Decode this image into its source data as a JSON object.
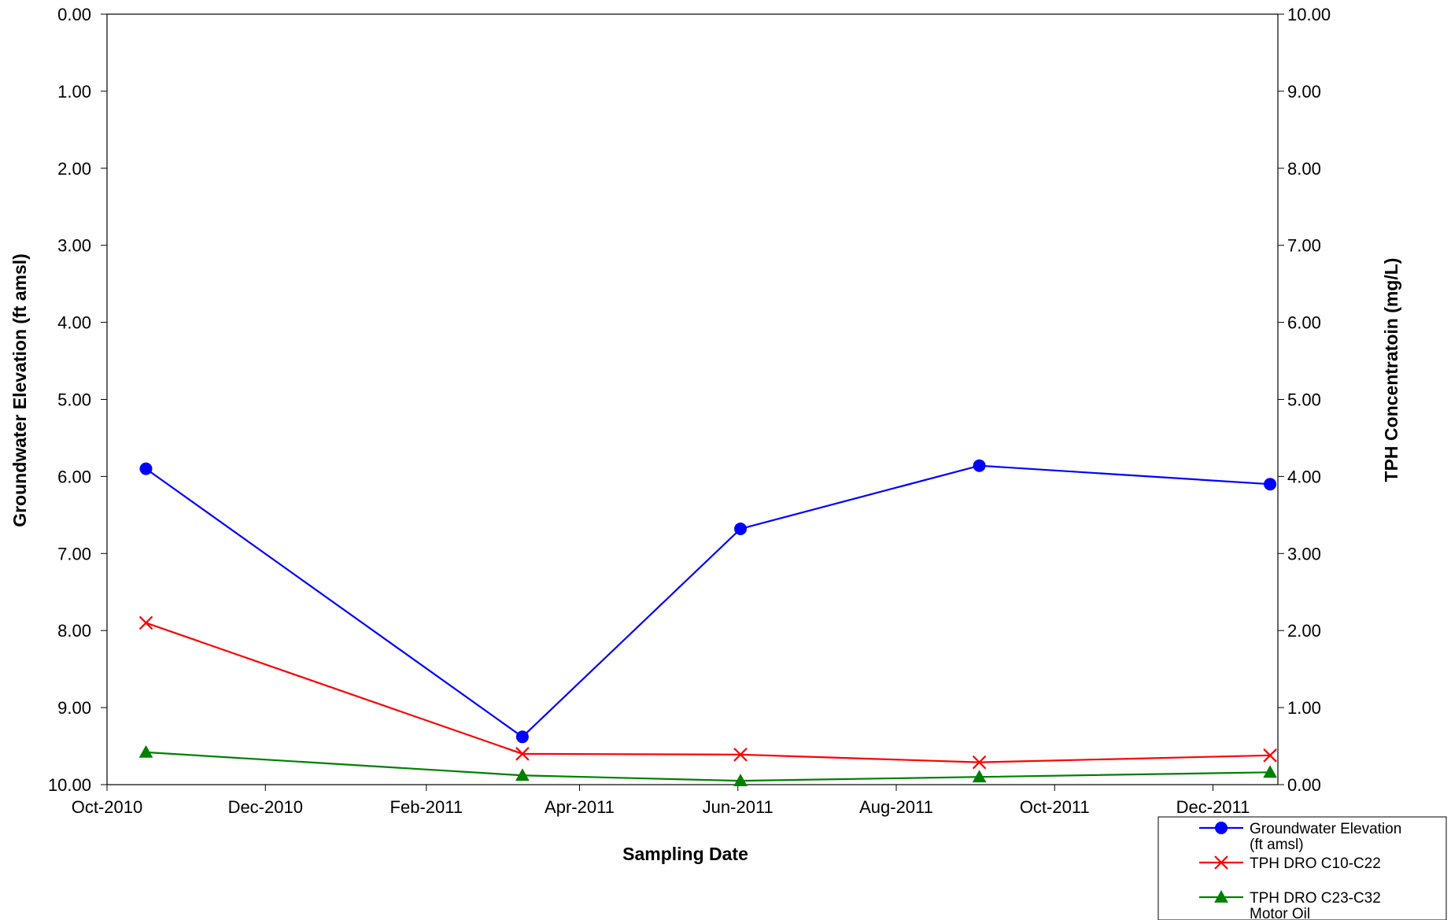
{
  "chart_data": {
    "type": "line",
    "xlabel": "Sampling Date",
    "ylabel_left": "Groundwater Elevation (ft amsl)",
    "ylabel_right": "TPH Concentratoin (mg/L)",
    "x_ticks": [
      "Oct-2010",
      "Dec-2010",
      "Feb-2011",
      "Apr-2011",
      "Jun-2011",
      "Aug-2011",
      "Oct-2011",
      "Dec-2011"
    ],
    "x_tick_values": [
      "2010-10-01",
      "2010-12-01",
      "2011-02-01",
      "2011-04-01",
      "2011-06-01",
      "2011-08-01",
      "2011-10-01",
      "2011-12-01"
    ],
    "xlim": [
      "2010-10-01",
      "2011-12-26"
    ],
    "y_left_ticks": [
      "0.00",
      "1.00",
      "2.00",
      "3.00",
      "4.00",
      "5.00",
      "6.00",
      "7.00",
      "8.00",
      "9.00",
      "10.00"
    ],
    "y_left_range": [
      0,
      10
    ],
    "y_left_inverted": true,
    "y_right_ticks": [
      "10.00",
      "9.00",
      "8.00",
      "7.00",
      "6.00",
      "5.00",
      "4.00",
      "3.00",
      "2.00",
      "1.00",
      "0.00"
    ],
    "y_right_range": [
      0,
      10
    ],
    "grid": false,
    "legend_position": "bottom-right",
    "series": [
      {
        "name": "Groundwater Elevation (ft amsl)",
        "legend_lines": [
          "Groundwater Elevation",
          "(ft amsl)"
        ],
        "axis": "left",
        "color": "#0000ff",
        "marker": "circle",
        "x": [
          "2010-10-16",
          "2011-03-10",
          "2011-06-02",
          "2011-09-02",
          "2011-12-23"
        ],
        "y": [
          5.9,
          9.38,
          6.68,
          5.86,
          6.1
        ]
      },
      {
        "name": "TPH DRO C10-C22",
        "legend_lines": [
          "TPH DRO C10-C22"
        ],
        "axis": "right",
        "color": "#ff0000",
        "marker": "x",
        "x": [
          "2010-10-16",
          "2011-03-10",
          "2011-06-02",
          "2011-09-02",
          "2011-12-23"
        ],
        "y": [
          2.1,
          0.4,
          0.39,
          0.29,
          0.38
        ]
      },
      {
        "name": "TPH DRO C23-C32 Motor Oil",
        "legend_lines": [
          "TPH DRO C23-C32",
          "Motor Oil"
        ],
        "axis": "right",
        "color": "#008000",
        "marker": "triangle",
        "x": [
          "2010-10-16",
          "2011-03-10",
          "2011-06-02",
          "2011-09-02",
          "2011-12-23"
        ],
        "y": [
          0.42,
          0.12,
          0.05,
          0.1,
          0.16
        ]
      }
    ]
  }
}
